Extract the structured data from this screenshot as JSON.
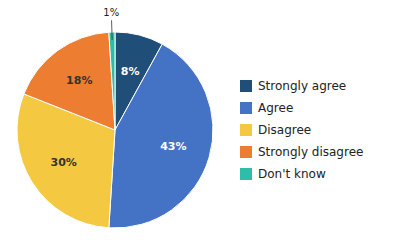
{
  "chart_data": {
    "type": "pie",
    "categories": [
      "Strongly agree",
      "Agree",
      "Disagree",
      "Strongly disagree",
      "Don't know"
    ],
    "values": [
      8,
      43,
      30,
      18,
      1
    ],
    "value_labels": [
      "8%",
      "43%",
      "30%",
      "18%",
      "1%"
    ],
    "colors": [
      "#1F4E79",
      "#4472C4",
      "#F5C842",
      "#ED7D31",
      "#2DBEAA"
    ],
    "data_labels": true,
    "legend": "right"
  }
}
